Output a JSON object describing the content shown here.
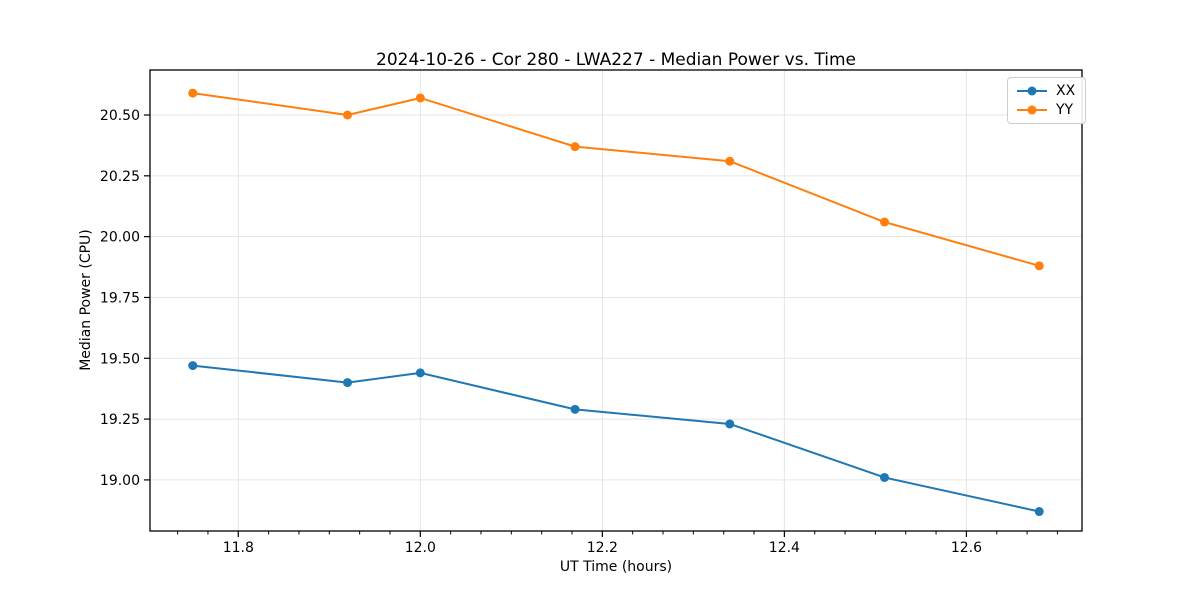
{
  "chart_data": {
    "type": "line",
    "title": "2024-10-26 - Cor 280 - LWA227 - Median Power vs. Time",
    "xlabel": "UT Time (hours)",
    "ylabel": "Median Power (CPU)",
    "x": [
      11.75,
      11.92,
      12.0,
      12.17,
      12.34,
      12.51,
      12.68
    ],
    "series": [
      {
        "name": "XX",
        "color": "#1f77b4",
        "marker": "circle",
        "values": [
          19.47,
          19.4,
          19.44,
          19.29,
          19.23,
          19.01,
          18.87
        ]
      },
      {
        "name": "YY",
        "color": "#ff7f0e",
        "marker": "circle",
        "values": [
          20.59,
          20.5,
          20.57,
          20.37,
          20.31,
          20.06,
          19.88
        ]
      }
    ],
    "xlim": [
      11.703,
      12.727
    ],
    "ylim": [
      18.79,
      20.685
    ],
    "x_ticks": {
      "values": [
        11.8,
        12.0,
        12.2,
        12.4,
        12.6
      ],
      "labels": [
        "11.8",
        "12.0",
        "12.2",
        "12.4",
        "12.6"
      ]
    },
    "y_ticks": {
      "values": [
        19.0,
        19.25,
        19.5,
        19.75,
        20.0,
        20.25,
        20.5
      ],
      "labels": [
        "19.00",
        "19.25",
        "19.50",
        "19.75",
        "20.00",
        "20.25",
        "20.50"
      ]
    },
    "x_minor_divisions": 6,
    "grid": true,
    "legend_position": "upper right",
    "colors": {
      "grid": "#e5e5e5",
      "spine": "#000000",
      "text": "#000000",
      "background": "#ffffff"
    }
  }
}
